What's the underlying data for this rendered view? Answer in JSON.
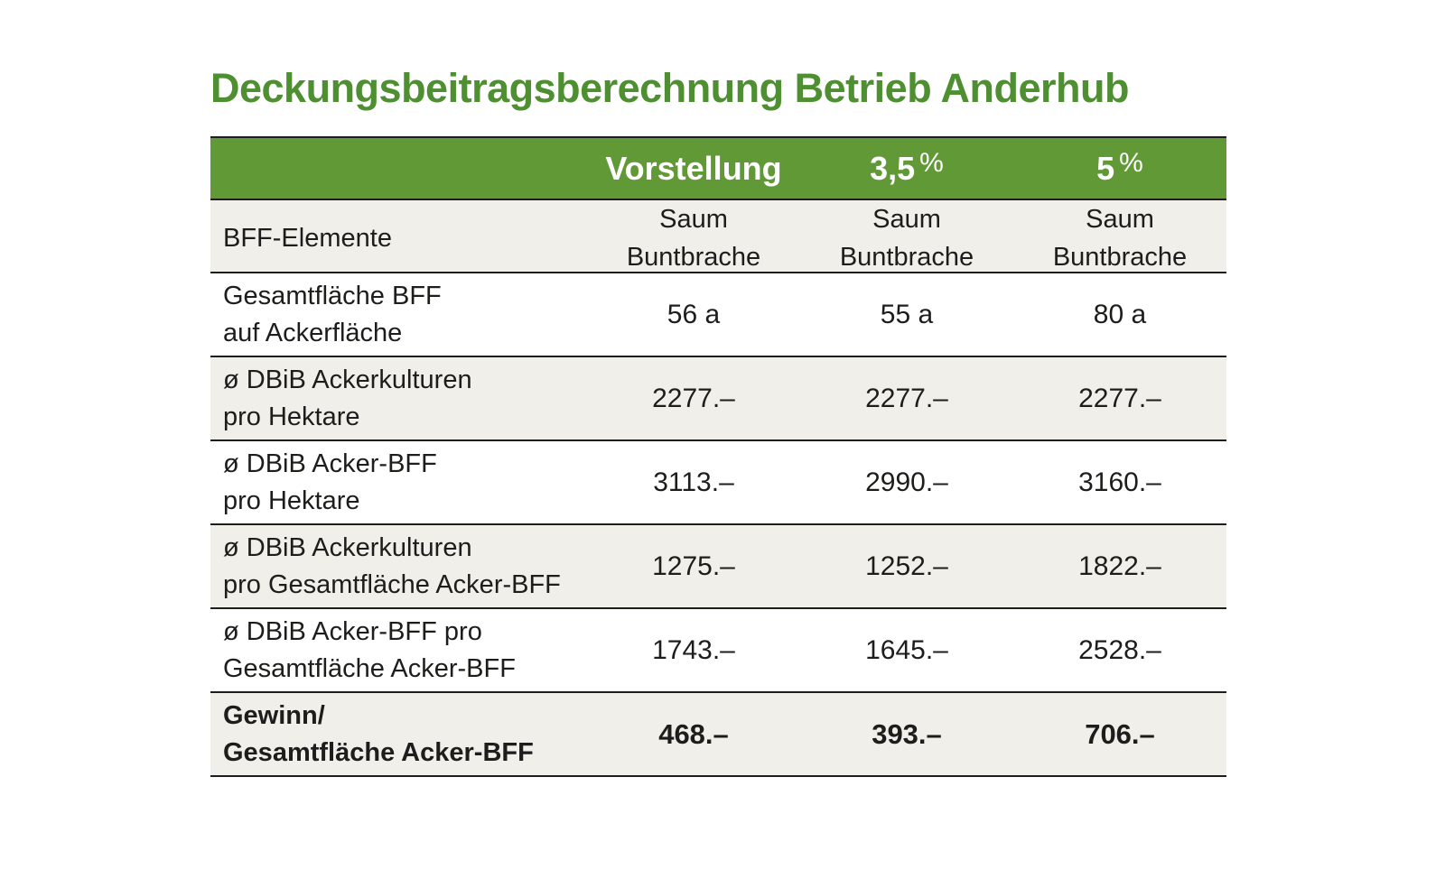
{
  "title": "Deckungsbeitragsberechnung Betrieb Anderhub",
  "colors": {
    "title_green": "#4e8f31",
    "header_green": "#609936",
    "row_beige": "#f0efe9",
    "border_dark": "#1d1d1b",
    "header_text": "#ffffff"
  },
  "table": {
    "header": {
      "vorstellung": "Vorstellung",
      "pct35": {
        "num": "3,5",
        "sign": "%"
      },
      "pct5": {
        "num": "5",
        "sign": "%"
      }
    },
    "subheader": {
      "label": "BFF-Elemente",
      "col1": {
        "line1": "Saum",
        "line2": "Buntbrache"
      },
      "col2": {
        "line1": "Saum",
        "line2": "Buntbrache"
      },
      "col3": {
        "line1": "Saum",
        "line2": "Buntbrache"
      }
    },
    "rows": [
      {
        "label1": "Gesamtfläche BFF",
        "label2": "auf Ackerfläche",
        "v1": "56 a",
        "v2": "55 a",
        "v3": "80 a"
      },
      {
        "label1": "ø DBiB Ackerkulturen",
        "label2": "pro Hektare",
        "v1": "2277.–",
        "v2": "2277.–",
        "v3": "2277.–"
      },
      {
        "label1": "ø DBiB Acker-BFF",
        "label2": "pro Hektare",
        "v1": "3113.–",
        "v2": "2990.–",
        "v3": "3160.–"
      },
      {
        "label1": "ø DBiB Ackerkulturen",
        "label2": "pro Gesamtfläche Acker-BFF",
        "v1": "1275.–",
        "v2": "1252.–",
        "v3": "1822.–"
      },
      {
        "label1": "ø DBiB Acker-BFF pro",
        "label2": "Gesamtfläche Acker-BFF",
        "v1": "1743.–",
        "v2": "1645.–",
        "v3": "2528.–"
      },
      {
        "label1": "Gewinn/",
        "label2": "Gesamtfläche Acker-BFF",
        "v1": "468.–",
        "v2": "393.–",
        "v3": "706.–"
      }
    ]
  }
}
